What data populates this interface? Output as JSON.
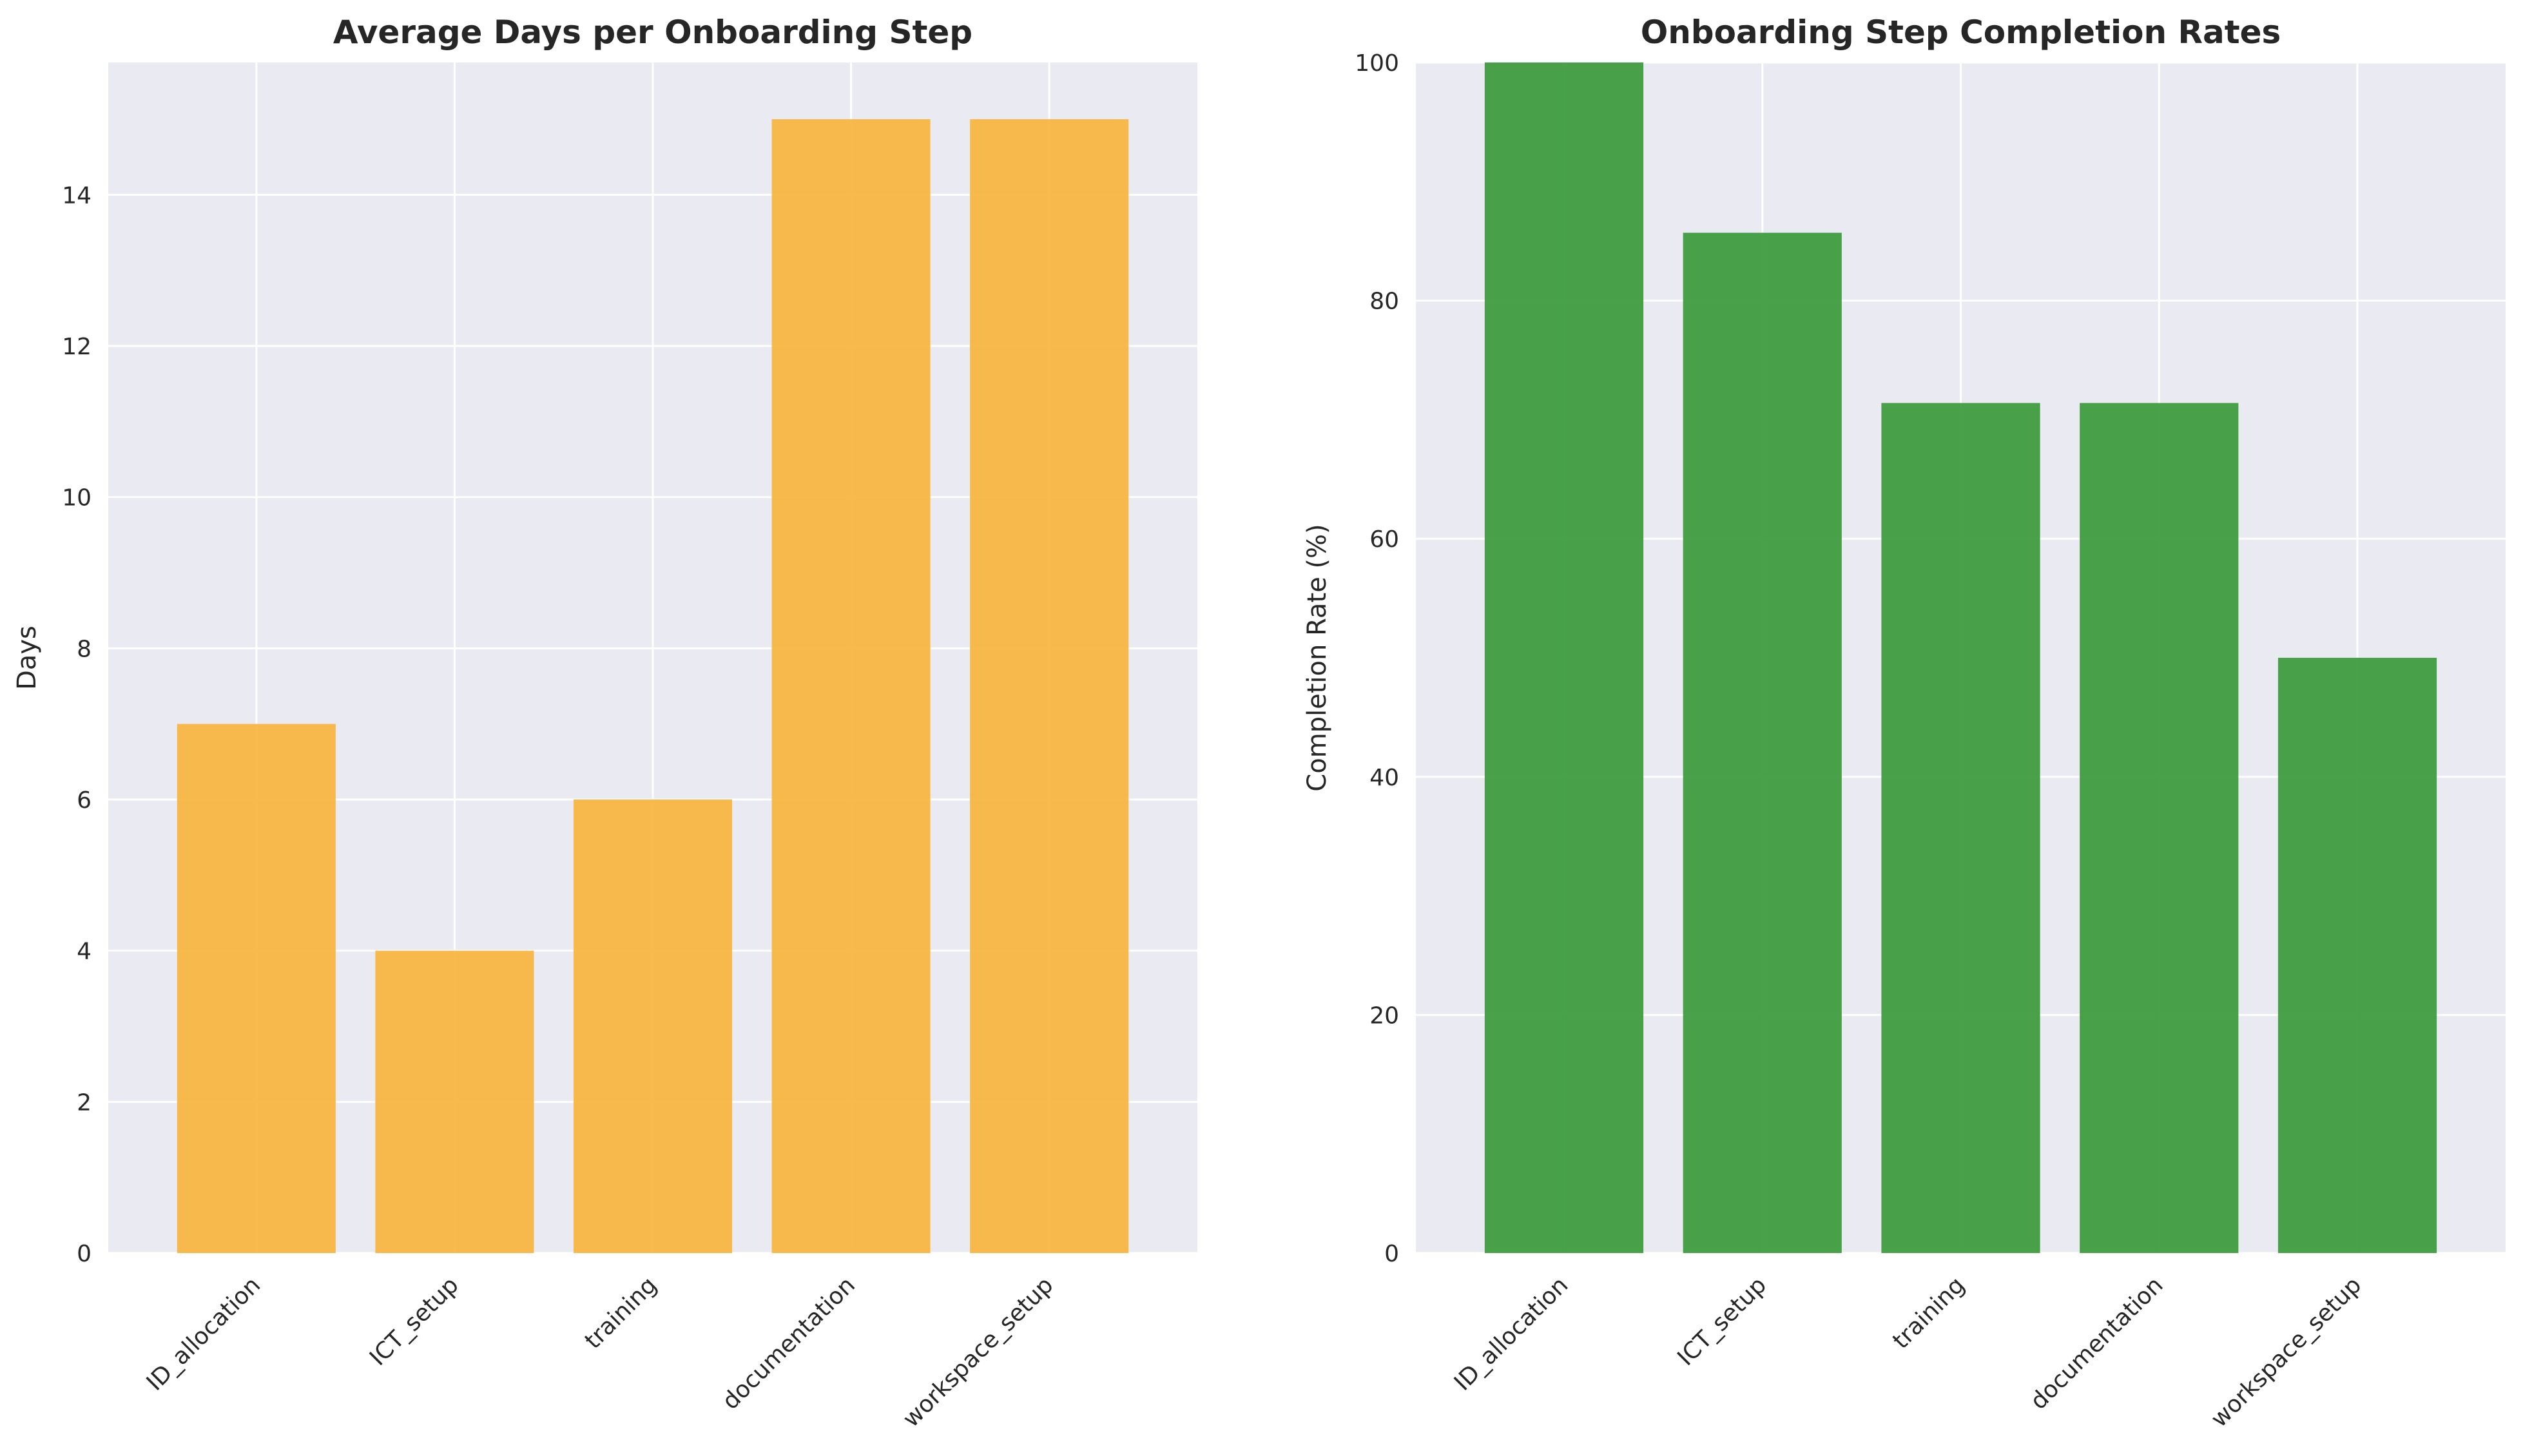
{
  "chart_data": [
    {
      "type": "bar",
      "title": "Average Days per Onboarding Step",
      "xlabel": "",
      "ylabel": "Days",
      "categories": [
        "ID_allocation",
        "ICT_setup",
        "training",
        "documentation",
        "workspace_setup"
      ],
      "values": [
        7,
        4,
        6,
        15,
        15
      ],
      "ylim": [
        0,
        15.75
      ],
      "yticks": [
        0,
        2,
        4,
        6,
        8,
        10,
        12,
        14
      ],
      "color": "#f7b43d",
      "grid": true
    },
    {
      "type": "bar",
      "title": "Onboarding Step Completion Rates",
      "xlabel": "",
      "ylabel": "Completion Rate (%)",
      "categories": [
        "ID_allocation",
        "ICT_setup",
        "training",
        "documentation",
        "workspace_setup"
      ],
      "values": [
        100,
        85.7,
        71.4,
        71.4,
        50
      ],
      "ylim": [
        0,
        100
      ],
      "yticks": [
        0,
        20,
        40,
        60,
        80,
        100
      ],
      "color": "#3a9a3a",
      "grid": true
    }
  ]
}
